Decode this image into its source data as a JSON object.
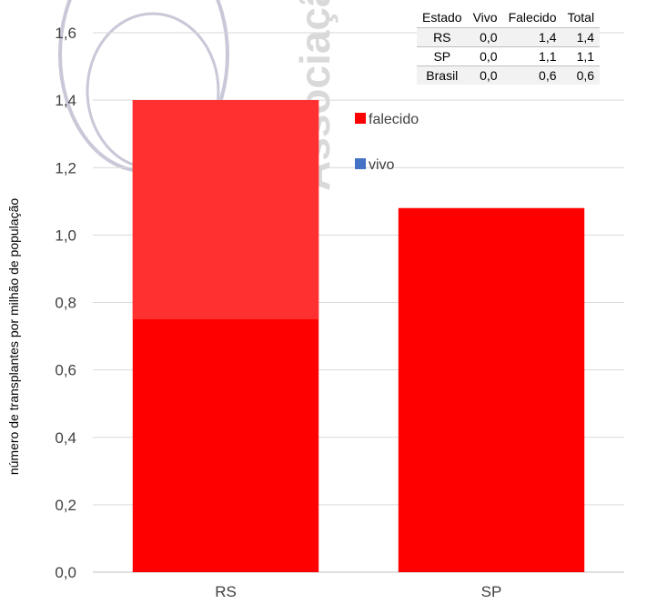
{
  "chart_data": {
    "type": "bar",
    "stacked": true,
    "categories": [
      "RS",
      "SP"
    ],
    "series": [
      {
        "name": "falecido",
        "color": "#ff0000",
        "values": [
          1.4,
          1.08
        ]
      },
      {
        "name": "vivo",
        "color": "#4472c4",
        "values": [
          0.0,
          0.0
        ]
      }
    ],
    "ylabel": "número de transplantes por milhão de população",
    "ylim": [
      0,
      1.6
    ],
    "yticks": [
      "0,0",
      "0,2",
      "0,4",
      "0,6",
      "0,8",
      "1,0",
      "1,2",
      "1,4",
      "1,6"
    ],
    "grid": true,
    "legend_position": "inside-top",
    "highlight_color": "#ff3030",
    "highlight_range_RS": [
      0.75,
      1.4
    ]
  },
  "watermark": {
    "text": "Associação",
    "color": "#d9d9d9"
  },
  "table": {
    "headers": [
      "Estado",
      "Vivo",
      "Falecido",
      "Total"
    ],
    "rows": [
      [
        "RS",
        "0,0",
        "1,4",
        "1,4"
      ],
      [
        "SP",
        "0,0",
        "1,1",
        "1,1"
      ],
      [
        "Brasil",
        "0,0",
        "0,6",
        "0,6"
      ]
    ]
  }
}
